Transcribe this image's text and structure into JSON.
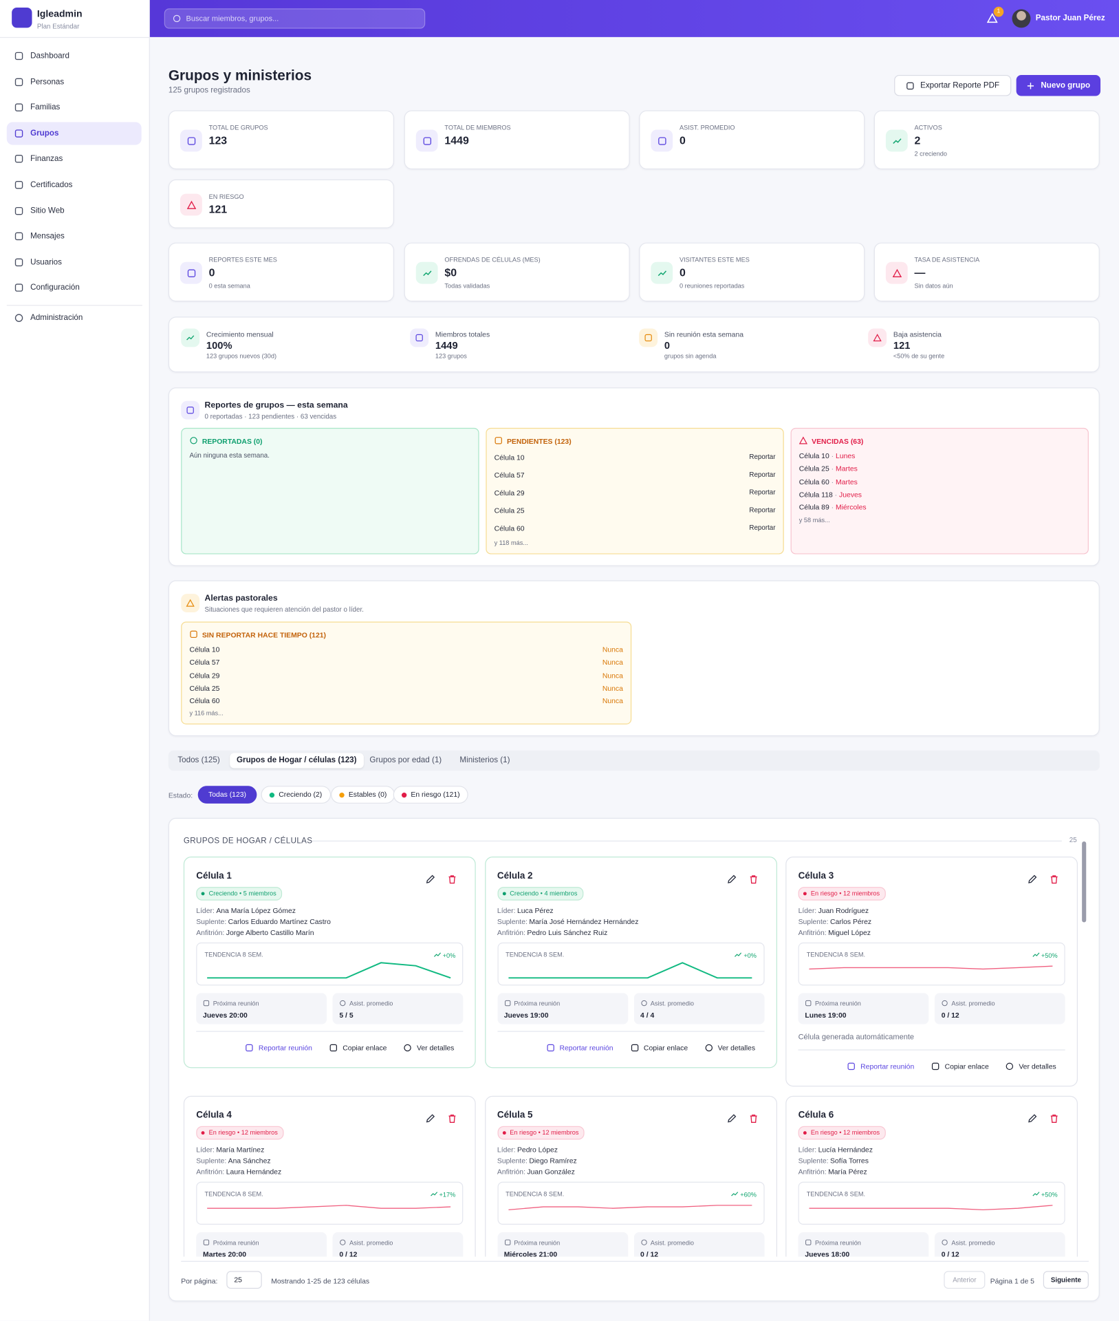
{
  "sidebar": {
    "brand": "Igleadmin",
    "plan": "Plan Estándar",
    "nav": [
      "Dashboard",
      "Personas",
      "Familias",
      "Grupos",
      "Finanzas",
      "Certificados",
      "Sitio Web",
      "Mensajes",
      "Usuarios",
      "Configuración"
    ],
    "active_item": 3,
    "admin": "Administración"
  },
  "topbar": {
    "search_placeholder": "Buscar miembros, grupos...",
    "notifications": "1",
    "user": "Pastor Juan Pérez"
  },
  "header": {
    "title": "Grupos y ministerios",
    "subtitle": "125 grupos registrados",
    "export_button": "Exportar Reporte PDF",
    "new_button": "Nuevo grupo"
  },
  "stats": [
    {
      "label": "TOTAL DE GRUPOS",
      "value": "123",
      "tone": "purple"
    },
    {
      "label": "TOTAL DE MIEMBROS",
      "value": "1449",
      "tone": "purple"
    },
    {
      "label": "ASIST. PROMEDIO",
      "value": "0",
      "tone": "purple"
    },
    {
      "label": "ACTIVOS",
      "value": "2",
      "note": "2 creciendo",
      "tone": "green"
    },
    {
      "label": "EN RIESGO",
      "value": "121",
      "tone": "red"
    }
  ],
  "stats2": [
    {
      "label": "REPORTES ESTE MES",
      "value": "0",
      "note": "0 esta semana",
      "tone": "purple"
    },
    {
      "label": "OFRENDAS DE CÉLULAS (MES)",
      "value": "$0",
      "note": "Todas validadas",
      "tone": "green"
    },
    {
      "label": "VISITANTES ESTE MES",
      "value": "0",
      "note": "0 reuniones reportadas",
      "tone": "green"
    },
    {
      "label": "TASA DE ASISTENCIA",
      "value": "—",
      "note": "Sin datos aún",
      "tone": "red"
    }
  ],
  "summary": [
    {
      "label": "Crecimiento mensual",
      "value": "100%",
      "note": "123 grupos nuevos (30d)",
      "tone": "green"
    },
    {
      "label": "Miembros totales",
      "value": "1449",
      "note": "123 grupos",
      "tone": "purple"
    },
    {
      "label": "Sin reunión esta semana",
      "value": "0",
      "note": "grupos sin agenda",
      "tone": "amber"
    },
    {
      "label": "Baja asistencia",
      "value": "121",
      "note": "<50% de su gente",
      "tone": "red"
    }
  ],
  "reports": {
    "title": "Reportes de grupos — esta semana",
    "subtitle": "0 reportadas · 123 pendientes · 63 vencidas",
    "reported": {
      "title": "REPORTADAS (0)",
      "empty": "Aún ninguna esta semana."
    },
    "pending": {
      "title": "PENDIENTES (123)",
      "action": "Reportar",
      "items": [
        "Célula 10",
        "Célula 57",
        "Célula 29",
        "Célula 25",
        "Célula 60"
      ],
      "more": "y 118 más..."
    },
    "overdue": {
      "title": "VENCIDAS (63)",
      "items": [
        {
          "name": "Célula 10",
          "day": "Lunes"
        },
        {
          "name": "Célula 25",
          "day": "Martes"
        },
        {
          "name": "Célula 60",
          "day": "Martes"
        },
        {
          "name": "Célula 118",
          "day": "Jueves"
        },
        {
          "name": "Célula 89",
          "day": "Miércoles"
        }
      ],
      "more": "y 58 más..."
    }
  },
  "alerts": {
    "title": "Alertas pastorales",
    "subtitle": "Situaciones que requieren atención del pastor o líder.",
    "box": {
      "title": "SIN REPORTAR HACE TIEMPO (121)",
      "items": [
        {
          "name": "Célula 10",
          "status": "Nunca"
        },
        {
          "name": "Célula 57",
          "status": "Nunca"
        },
        {
          "name": "Célula 29",
          "status": "Nunca"
        },
        {
          "name": "Célula 25",
          "status": "Nunca"
        },
        {
          "name": "Célula 60",
          "status": "Nunca"
        }
      ],
      "more": "y 116 más..."
    }
  },
  "tabs": {
    "items": [
      "Todos (125)",
      "Grupos de Hogar / células (123)",
      "Grupos por edad (1)",
      "Ministerios (1)"
    ],
    "active_item": 1
  },
  "filters": {
    "label": "Estado:",
    "items": [
      {
        "text": "Todas (123)",
        "dot": null
      },
      {
        "text": "Creciendo (2)",
        "dot": "#10b981"
      },
      {
        "text": "Estables (0)",
        "dot": "#f59e0b"
      },
      {
        "text": "En riesgo (121)",
        "dot": "#e11d48"
      }
    ],
    "active_item": 0
  },
  "groups": {
    "title": "GRUPOS DE HOGAR / CÉLULAS",
    "count": "25",
    "labels": {
      "leader": "Líder:",
      "substitute": "Suplente:",
      "host": "Anfitrión:",
      "trend": "TENDENCIA 8 SEM.",
      "next": "Próxima reunión",
      "avg": "Asist. promedio",
      "report": "Reportar reunión",
      "copy": "Copiar enlace",
      "details": "Ver detalles"
    },
    "cards": [
      {
        "name": "Célula 1",
        "status": "Creciendo",
        "tone": "green",
        "members": "5 miembros",
        "leader": "Ana María López Gómez",
        "substitute": "Carlos Eduardo Martínez Castro",
        "host": "Jorge Alberto Castillo Marín",
        "change": "+0%",
        "trend": [
          0,
          0,
          0,
          0,
          0,
          5,
          4,
          0
        ],
        "next": "Jueves 20:00",
        "avg": "5 / 5"
      },
      {
        "name": "Célula 2",
        "status": "Creciendo",
        "tone": "green",
        "members": "4 miembros",
        "leader": "Luca Pérez",
        "substitute": "María José Hernández Hernández",
        "host": "Pedro Luis Sánchez Ruiz",
        "change": "+0%",
        "trend": [
          0,
          0,
          0,
          0,
          0,
          4,
          0,
          0
        ],
        "next": "Jueves 19:00",
        "avg": "4 / 4"
      },
      {
        "name": "Célula 3",
        "status": "En riesgo",
        "tone": "red",
        "members": "12 miembros",
        "leader": "Juan Rodríguez",
        "substitute": "Carlos Pérez",
        "host": "Miguel López",
        "change": "+50%",
        "trend": [
          6,
          7,
          7,
          7,
          7,
          6,
          7,
          8
        ],
        "next": "Lunes 19:00",
        "avg": "0 / 12",
        "note": "Célula generada automáticamente"
      },
      {
        "name": "Célula 4",
        "status": "En riesgo",
        "tone": "red",
        "members": "12 miembros",
        "leader": "María Martínez",
        "substitute": "Ana Sánchez",
        "host": "Laura Hernández",
        "change": "+17%",
        "trend": [
          6,
          6,
          6,
          7,
          8,
          6,
          6,
          7
        ],
        "next": "Martes 20:00",
        "avg": "0 / 12"
      },
      {
        "name": "Célula 5",
        "status": "En riesgo",
        "tone": "red",
        "members": "12 miembros",
        "leader": "Pedro López",
        "substitute": "Diego Ramírez",
        "host": "Juan González",
        "change": "+60%",
        "trend": [
          5,
          7,
          7,
          6,
          7,
          7,
          8,
          8
        ],
        "next": "Miércoles 21:00",
        "avg": "0 / 12"
      },
      {
        "name": "Célula 6",
        "status": "En riesgo",
        "tone": "red",
        "members": "12 miembros",
        "leader": "Lucía Hernández",
        "substitute": "Sofía Torres",
        "host": "María Pérez",
        "change": "+50%",
        "trend": [
          6,
          6,
          6,
          6,
          6,
          5,
          6,
          8
        ],
        "next": "Jueves 18:00",
        "avg": "0 / 12"
      }
    ]
  },
  "pagination": {
    "per_page_label": "Por página:",
    "per_page": "25",
    "showing": "Mostrando 1-25 de 123 células",
    "prev": "Anterior",
    "page": "Página 1 de 5",
    "next": "Siguiente"
  }
}
